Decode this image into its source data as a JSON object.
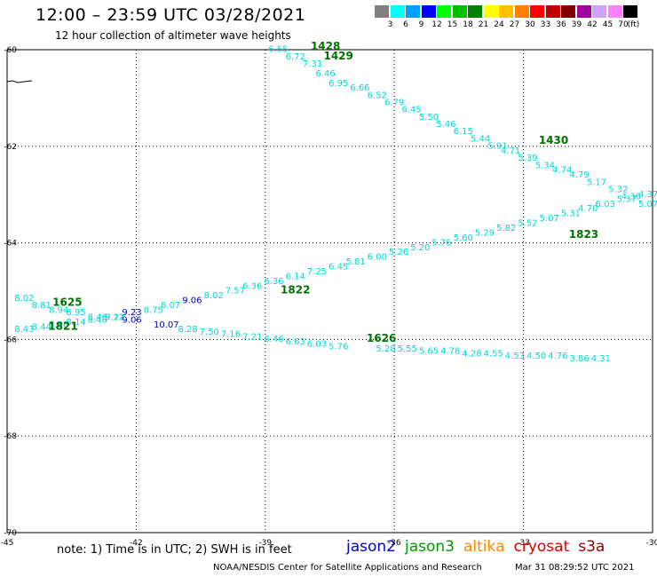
{
  "header": {
    "title": "12:00 – 23:59 UTC 03/28/2021",
    "subtitle": "12 hour collection of altimeter wave heights"
  },
  "color_scale": {
    "unit": "(ft)",
    "swatches": [
      {
        "label": "3",
        "color": "#808080"
      },
      {
        "label": "6",
        "color": "#00ffff"
      },
      {
        "label": "9",
        "color": "#00a0ff"
      },
      {
        "label": "12",
        "color": "#0000ff"
      },
      {
        "label": "15",
        "color": "#00ff00"
      },
      {
        "label": "18",
        "color": "#00c000"
      },
      {
        "label": "21",
        "color": "#008000"
      },
      {
        "label": "24",
        "color": "#ffff00"
      },
      {
        "label": "27",
        "color": "#ffc000"
      },
      {
        "label": "30",
        "color": "#ff8000"
      },
      {
        "label": "33",
        "color": "#ff0000"
      },
      {
        "label": "36",
        "color": "#c00000"
      },
      {
        "label": "39",
        "color": "#800000"
      },
      {
        "label": "42",
        "color": "#a000a0"
      },
      {
        "label": "45",
        "color": "#d0a0ff"
      },
      {
        "label": "70",
        "color": "#ff80ff"
      },
      {
        "label": "",
        "color": "#000000"
      }
    ]
  },
  "footer": {
    "note": "note:  1) Time is in UTC;  2) SWH is in feet",
    "satellites": [
      {
        "name": "jason2",
        "color": "#0000cc"
      },
      {
        "name": "jason3",
        "color": "#009900"
      },
      {
        "name": "altika",
        "color": "#ff8800"
      },
      {
        "name": "cryosat",
        "color": "#dd0000"
      },
      {
        "name": "s3a",
        "color": "#990000"
      }
    ],
    "credit": "NOAA/NESDIS Center for Satellite Applications and Research",
    "timestamp": "Mar 31 08:29:52 UTC 2021"
  },
  "chart_data": {
    "type": "scatter",
    "xlim": [
      -45,
      -30
    ],
    "ylim": [
      -70,
      -60
    ],
    "xticks": [
      -45,
      -42,
      -39,
      -36,
      -33,
      -30
    ],
    "xtick_labels": [
      "-45",
      "-42",
      "-39",
      "-36",
      "-33",
      "-30"
    ],
    "yticks": [
      -60,
      -62,
      -64,
      -66,
      -68,
      -70
    ],
    "ytick_labels": [
      "-60",
      "-62",
      "-64",
      "-66",
      "-68",
      "-70"
    ],
    "grid": true,
    "colors": {
      "cyan": "#00d8d8",
      "blue": "#0000b0",
      "time": "#007000"
    },
    "passes": [
      {
        "points": [
          {
            "x": -38.7,
            "y": -60.05,
            "v": "6.55"
          },
          {
            "x": -38.3,
            "y": -60.2,
            "v": "6.72"
          },
          {
            "x": -37.9,
            "y": -60.35,
            "v": "7.31"
          },
          {
            "x": -37.6,
            "y": -60.55,
            "v": "6.46"
          },
          {
            "x": -37.3,
            "y": -60.75,
            "v": "6.95"
          },
          {
            "x": -36.8,
            "y": -60.85,
            "v": "6.66"
          },
          {
            "x": -36.4,
            "y": -61.0,
            "v": "6.52"
          },
          {
            "x": -36.0,
            "y": -61.15,
            "v": "6.79"
          },
          {
            "x": -35.6,
            "y": -61.3,
            "v": "6.45"
          },
          {
            "x": -35.2,
            "y": -61.45,
            "v": "5.50"
          },
          {
            "x": -34.8,
            "y": -61.6,
            "v": "5.46"
          },
          {
            "x": -34.4,
            "y": -61.75,
            "v": "6.15"
          },
          {
            "x": -34.0,
            "y": -61.9,
            "v": "5.44"
          },
          {
            "x": -33.6,
            "y": -62.05,
            "v": "5.91"
          },
          {
            "x": -33.3,
            "y": -62.15,
            "v": "4.71"
          },
          {
            "x": -32.9,
            "y": -62.3,
            "v": "5.39"
          },
          {
            "x": -32.5,
            "y": -62.45,
            "v": "5.34"
          },
          {
            "x": -32.1,
            "y": -62.55,
            "v": "4.74"
          },
          {
            "x": -31.7,
            "y": -62.65,
            "v": "4.79"
          },
          {
            "x": -31.3,
            "y": -62.8,
            "v": "5.17"
          },
          {
            "x": -30.8,
            "y": -62.95,
            "v": "5.32"
          },
          {
            "x": -30.5,
            "y": -63.1,
            "v": "4.36"
          },
          {
            "x": -30.1,
            "y": -63.25,
            "v": "5.07"
          }
        ]
      },
      {
        "points": [
          {
            "x": -44.6,
            "y": -65.2,
            "v": "8.02"
          },
          {
            "x": -44.2,
            "y": -65.35,
            "v": "8.81"
          },
          {
            "x": -43.8,
            "y": -65.45,
            "v": "8.94"
          },
          {
            "x": -43.4,
            "y": -65.5,
            "v": "8.95"
          },
          {
            "x": -42.9,
            "y": -65.6,
            "v": "8.46"
          },
          {
            "x": -42.5,
            "y": -65.6,
            "v": "9.11"
          },
          {
            "x": -42.1,
            "y": -65.5,
            "v": "9.23",
            "blue": true
          },
          {
            "x": -41.6,
            "y": -65.45,
            "v": "8.75"
          },
          {
            "x": -41.2,
            "y": -65.35,
            "v": "8.07"
          },
          {
            "x": -40.7,
            "y": -65.25,
            "v": "9.06",
            "blue": true
          },
          {
            "x": -40.2,
            "y": -65.15,
            "v": "8.02"
          },
          {
            "x": -39.7,
            "y": -65.05,
            "v": "7.57"
          },
          {
            "x": -39.3,
            "y": -64.95,
            "v": "6.36"
          },
          {
            "x": -38.8,
            "y": -64.85,
            "v": "6.36"
          },
          {
            "x": -38.3,
            "y": -64.75,
            "v": "6.14"
          },
          {
            "x": -37.8,
            "y": -64.65,
            "v": "7.25"
          },
          {
            "x": -37.3,
            "y": -64.55,
            "v": "6.45"
          },
          {
            "x": -36.9,
            "y": -64.45,
            "v": "5.81"
          },
          {
            "x": -36.4,
            "y": -64.35,
            "v": "6.00"
          },
          {
            "x": -35.9,
            "y": -64.25,
            "v": "5.26"
          },
          {
            "x": -35.4,
            "y": -64.15,
            "v": "5.20"
          },
          {
            "x": -34.9,
            "y": -64.05,
            "v": "5.76"
          },
          {
            "x": -34.4,
            "y": -63.95,
            "v": "5.60"
          },
          {
            "x": -33.9,
            "y": -63.85,
            "v": "5.29"
          },
          {
            "x": -33.4,
            "y": -63.75,
            "v": "5.82"
          },
          {
            "x": -32.9,
            "y": -63.65,
            "v": "5.52"
          },
          {
            "x": -32.4,
            "y": -63.55,
            "v": "5.07"
          },
          {
            "x": -31.9,
            "y": -63.45,
            "v": "5.31"
          },
          {
            "x": -31.5,
            "y": -63.35,
            "v": "4.70"
          },
          {
            "x": -31.1,
            "y": -63.25,
            "v": "6.03"
          },
          {
            "x": -30.6,
            "y": -63.15,
            "v": "5.37"
          },
          {
            "x": -30.1,
            "y": -63.05,
            "v": "4.37"
          }
        ]
      },
      {
        "points": [
          {
            "x": -44.6,
            "y": -65.85,
            "v": "8.43"
          },
          {
            "x": -44.2,
            "y": -65.8,
            "v": "8.44"
          },
          {
            "x": -43.8,
            "y": -65.75,
            "v": "8.86"
          },
          {
            "x": -43.4,
            "y": -65.7,
            "v": "8.14"
          },
          {
            "x": -42.9,
            "y": -65.65,
            "v": "8.48"
          },
          {
            "x": -42.5,
            "y": -65.6,
            "v": "9.22"
          },
          {
            "x": -42.1,
            "y": -65.65,
            "v": "9.06",
            "blue": true
          },
          {
            "x": -41.3,
            "y": -65.75,
            "v": "10.07",
            "blue": true
          },
          {
            "x": -40.8,
            "y": -65.85,
            "v": "8.28"
          },
          {
            "x": -40.3,
            "y": -65.9,
            "v": "7.50"
          },
          {
            "x": -39.8,
            "y": -65.95,
            "v": "7.16"
          },
          {
            "x": -39.3,
            "y": -66.0,
            "v": "7.21"
          },
          {
            "x": -38.8,
            "y": -66.05,
            "v": "6.46"
          },
          {
            "x": -38.3,
            "y": -66.1,
            "v": "6.63"
          },
          {
            "x": -37.8,
            "y": -66.15,
            "v": "6.03"
          },
          {
            "x": -37.3,
            "y": -66.2,
            "v": "5.76"
          },
          {
            "x": -36.2,
            "y": -66.25,
            "v": "5.28"
          },
          {
            "x": -35.7,
            "y": -66.25,
            "v": "5.55"
          },
          {
            "x": -35.2,
            "y": -66.3,
            "v": "5.65"
          },
          {
            "x": -34.7,
            "y": -66.3,
            "v": "4.78"
          },
          {
            "x": -34.2,
            "y": -66.35,
            "v": "4.28"
          },
          {
            "x": -33.7,
            "y": -66.35,
            "v": "4.55"
          },
          {
            "x": -33.2,
            "y": -66.4,
            "v": "4.53"
          },
          {
            "x": -32.7,
            "y": -66.4,
            "v": "4.50"
          },
          {
            "x": -32.2,
            "y": -66.4,
            "v": "4.76"
          },
          {
            "x": -31.7,
            "y": -66.45,
            "v": "3.86"
          },
          {
            "x": -31.2,
            "y": -66.45,
            "v": "4.31"
          }
        ]
      }
    ],
    "time_labels": [
      {
        "x": -37.6,
        "y": -60.0,
        "v": "1428"
      },
      {
        "x": -37.3,
        "y": -60.2,
        "v": "1429"
      },
      {
        "x": -32.3,
        "y": -61.95,
        "v": "1430"
      },
      {
        "x": -31.6,
        "y": -63.9,
        "v": "1823"
      },
      {
        "x": -38.3,
        "y": -65.05,
        "v": "1822"
      },
      {
        "x": -43.6,
        "y": -65.3,
        "v": "1625"
      },
      {
        "x": -43.7,
        "y": -65.8,
        "v": "1821"
      },
      {
        "x": -36.3,
        "y": -66.05,
        "v": "1626"
      }
    ]
  }
}
